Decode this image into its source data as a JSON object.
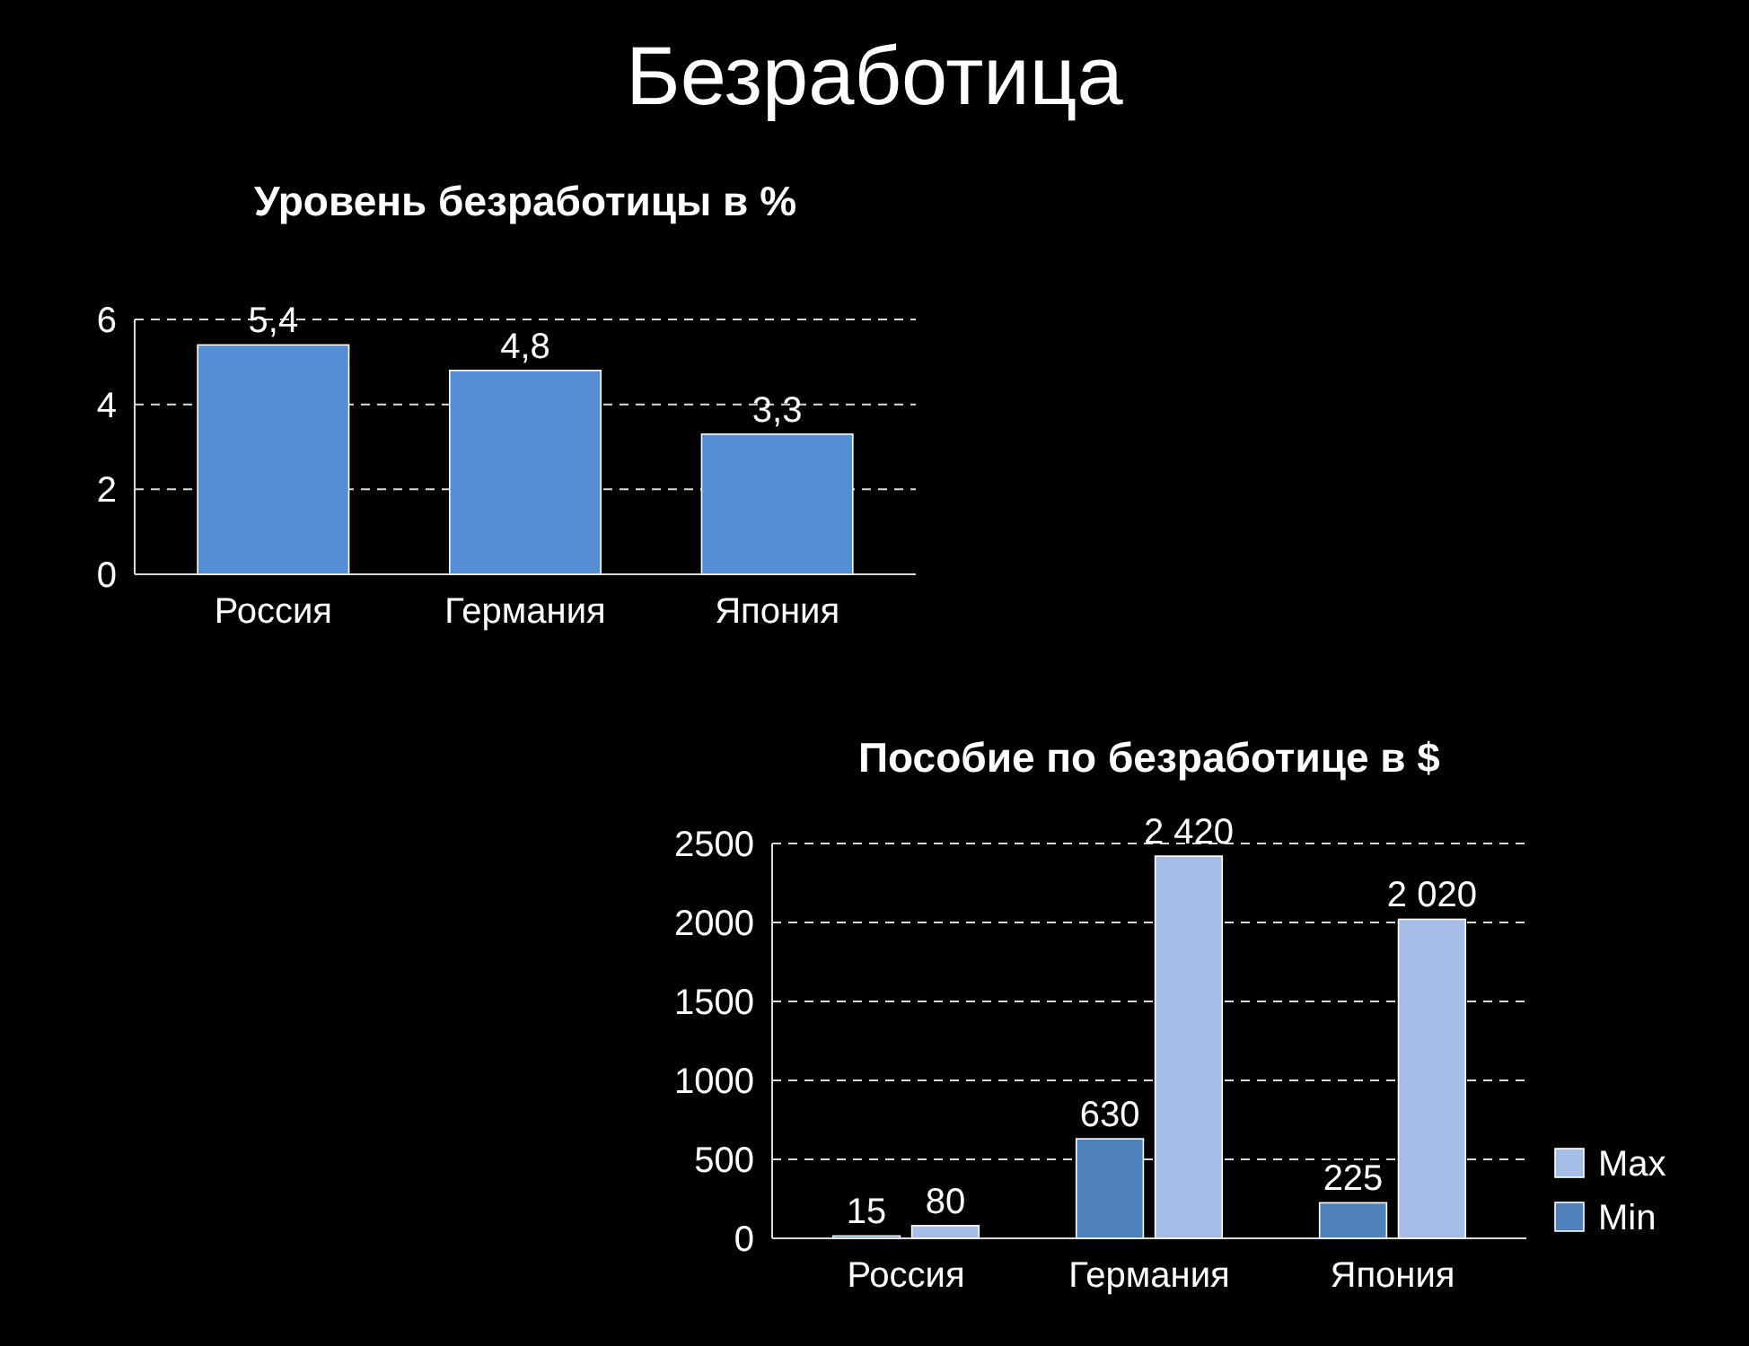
{
  "chart_data": [
    {
      "type": "other",
      "title": "Безработица"
    },
    {
      "type": "bar",
      "title": "Уровень безработицы в %",
      "categories": [
        "Россия",
        "Германия",
        "Япония"
      ],
      "values": [
        5.4,
        4.8,
        3.3
      ],
      "value_labels": [
        "5,4",
        "4,8",
        "3,3"
      ],
      "color": "#558ed5",
      "ylim": [
        0,
        6
      ],
      "yticks": [
        0,
        2,
        4,
        6
      ],
      "grid": "y"
    },
    {
      "type": "bar",
      "title": "Пособие по безработице в $",
      "categories": [
        "Россия",
        "Германия",
        "Япония"
      ],
      "series": [
        {
          "name": "Min",
          "color": "#4f81bd",
          "values": [
            15,
            630,
            225
          ],
          "value_labels": [
            "15",
            "630",
            "225"
          ]
        },
        {
          "name": "Max",
          "color": "#a6bde8",
          "values": [
            80,
            2420,
            2020
          ],
          "value_labels": [
            "80",
            "2 420",
            "2 020"
          ]
        }
      ],
      "ylim": [
        0,
        2500
      ],
      "yticks": [
        0,
        500,
        1000,
        1500,
        2000,
        2500
      ],
      "grid": "y",
      "legend": "bottom right"
    }
  ]
}
